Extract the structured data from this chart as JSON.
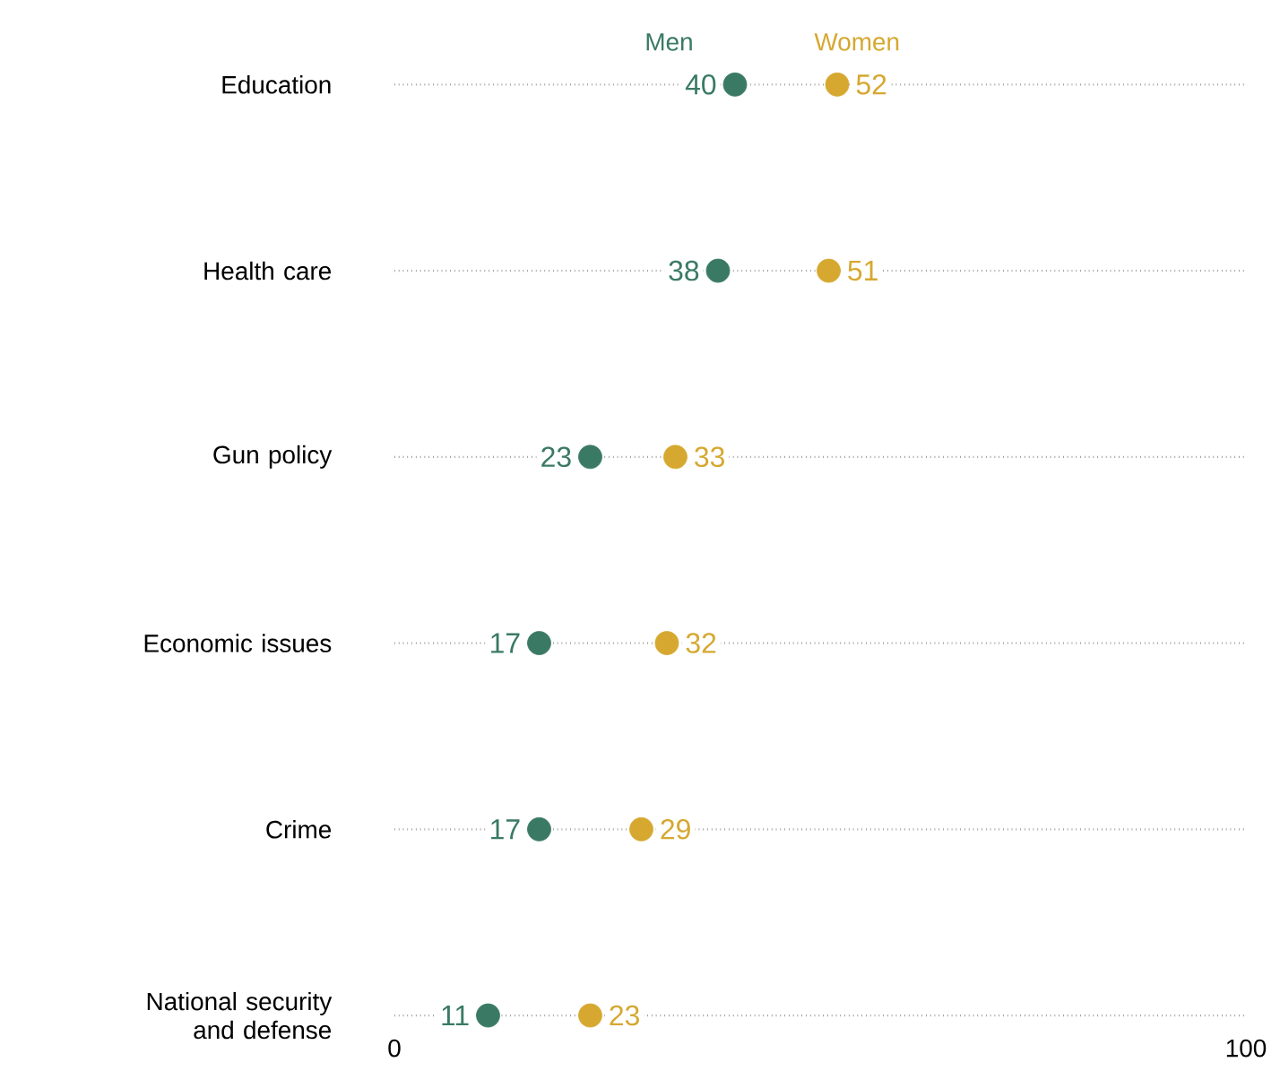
{
  "chart_data": {
    "type": "scatter",
    "orientation": "horizontal",
    "categories": [
      "Education",
      "Health care",
      "Gun policy",
      "Economic issues",
      "Crime",
      "National security and defense"
    ],
    "series": [
      {
        "name": "Men",
        "color": "#3a7a64",
        "values": [
          40,
          38,
          23,
          17,
          17,
          11
        ]
      },
      {
        "name": "Women",
        "color": "#d6a830",
        "values": [
          52,
          51,
          33,
          32,
          29,
          23
        ]
      }
    ],
    "xlim": [
      0,
      100
    ],
    "xticks": [
      0,
      100
    ],
    "data_labels": true,
    "grid": "y"
  }
}
